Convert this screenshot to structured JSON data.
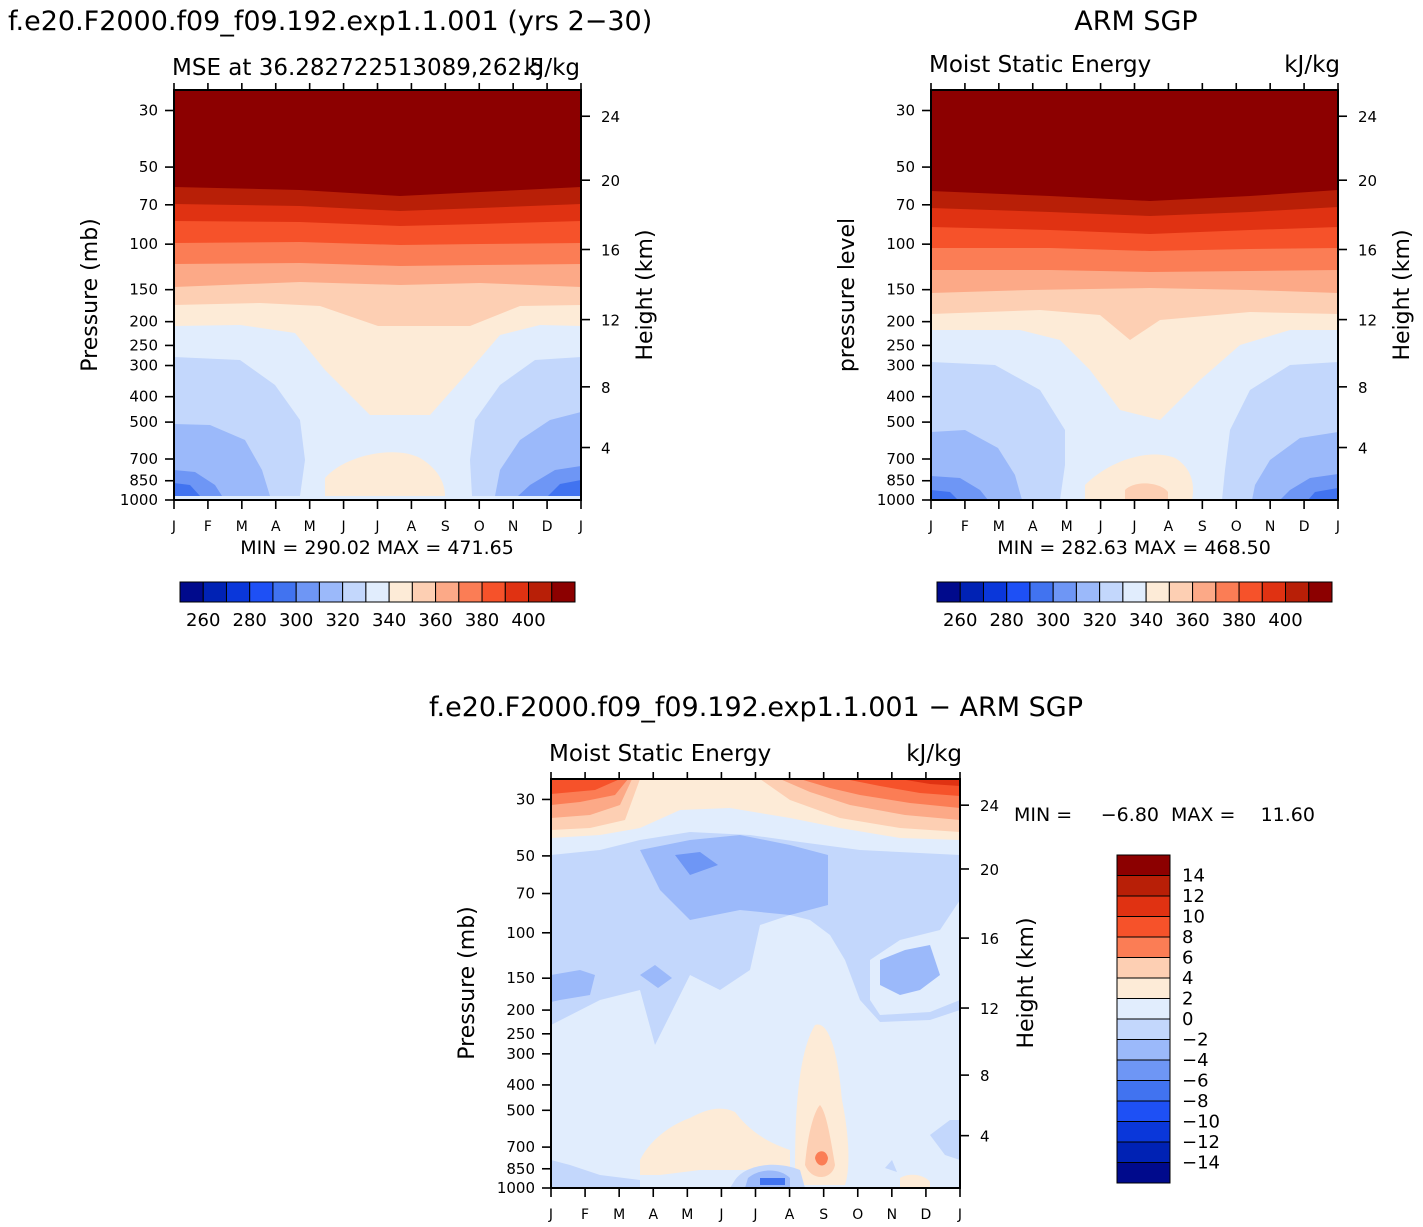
{
  "chart_data": [
    {
      "type": "heatmap",
      "title": "f.e20.F2000.f09_f09.192.exp1.1.001 (yrs 2−30)",
      "subtitle_left": "MSE at 36.282722513089,262.5",
      "units": "kJ/kg",
      "ylabel": "Pressure (mb)",
      "ylabel_right": "Height (km)",
      "x_categories": [
        "J",
        "F",
        "M",
        "A",
        "M",
        "J",
        "J",
        "A",
        "S",
        "O",
        "N",
        "D",
        "J"
      ],
      "pressure_ticks": [
        "30",
        "50",
        "70",
        "100",
        "150",
        "200",
        "250",
        "300",
        "400",
        "500",
        "700",
        "850",
        "1000"
      ],
      "height_ticks": [
        "24",
        "20",
        "16",
        "12",
        "8",
        "4"
      ],
      "min_max_text": "MIN = 290.02 MAX = 471.65",
      "min": 290.02,
      "max": 471.65,
      "colorbar_labels": [
        "260",
        "280",
        "300",
        "320",
        "340",
        "360",
        "380",
        "400"
      ],
      "color_levels": [
        250,
        260,
        270,
        280,
        290,
        300,
        310,
        320,
        330,
        340,
        350,
        360,
        370,
        380,
        390,
        400
      ]
    },
    {
      "type": "heatmap",
      "title": "ARM SGP",
      "subtitle_left": "Moist Static Energy",
      "units": "kJ/kg",
      "ylabel": "pressure level",
      "ylabel_right": "Height (km)",
      "x_categories": [
        "J",
        "F",
        "M",
        "A",
        "M",
        "J",
        "J",
        "A",
        "S",
        "O",
        "N",
        "D",
        "J"
      ],
      "pressure_ticks": [
        "30",
        "50",
        "70",
        "100",
        "150",
        "200",
        "250",
        "300",
        "400",
        "500",
        "700",
        "850",
        "1000"
      ],
      "height_ticks": [
        "24",
        "20",
        "16",
        "12",
        "8",
        "4"
      ],
      "min_max_text": "MIN = 282.63 MAX = 468.50",
      "min": 282.63,
      "max": 468.5,
      "colorbar_labels": [
        "260",
        "280",
        "300",
        "320",
        "340",
        "360",
        "380",
        "400"
      ],
      "color_levels": [
        250,
        260,
        270,
        280,
        290,
        300,
        310,
        320,
        330,
        340,
        350,
        360,
        370,
        380,
        390,
        400
      ]
    },
    {
      "type": "heatmap",
      "title": "f.e20.F2000.f09_f09.192.exp1.1.001 − ARM SGP",
      "subtitle_left": "Moist Static Energy",
      "units": "kJ/kg",
      "ylabel": "Pressure (mb)",
      "ylabel_right": "Height (km)",
      "x_categories": [
        "J",
        "F",
        "M",
        "A",
        "M",
        "J",
        "J",
        "A",
        "S",
        "O",
        "N",
        "D",
        "J"
      ],
      "pressure_ticks": [
        "30",
        "50",
        "70",
        "100",
        "150",
        "200",
        "250",
        "300",
        "400",
        "500",
        "700",
        "850",
        "1000"
      ],
      "height_ticks": [
        "24",
        "20",
        "16",
        "12",
        "8",
        "4"
      ],
      "min_label": "MIN =",
      "min_value": "−6.80",
      "max_label": "MAX =",
      "max_value": "11.60",
      "min": -6.8,
      "max": 11.6,
      "colorbar_labels": [
        "14",
        "12",
        "10",
        "8",
        "6",
        "4",
        "2",
        "0",
        "−2",
        "−4",
        "−6",
        "−8",
        "−10",
        "−12",
        "−14"
      ]
    }
  ],
  "palette": {
    "full": [
      "#000a8c",
      "#0022b4",
      "#0a37da",
      "#1e50f5",
      "#4173f0",
      "#6e96f5",
      "#9bb9fa",
      "#c3d7fc",
      "#e1edfd",
      "#fdebd7",
      "#fdcfb3",
      "#fca987",
      "#fb7d55",
      "#f6522a",
      "#e03212",
      "#b81f07",
      "#8c0000"
    ],
    "diff": [
      "#8c0000",
      "#b81f07",
      "#e03212",
      "#f6522a",
      "#fb7d55",
      "#fdcfb3",
      "#fdebd7",
      "#e1edfd",
      "#c3d7fc",
      "#9bb9fa",
      "#6e96f5",
      "#4173f0",
      "#1e50f5",
      "#0a37da",
      "#0022b4",
      "#000a8c"
    ]
  }
}
